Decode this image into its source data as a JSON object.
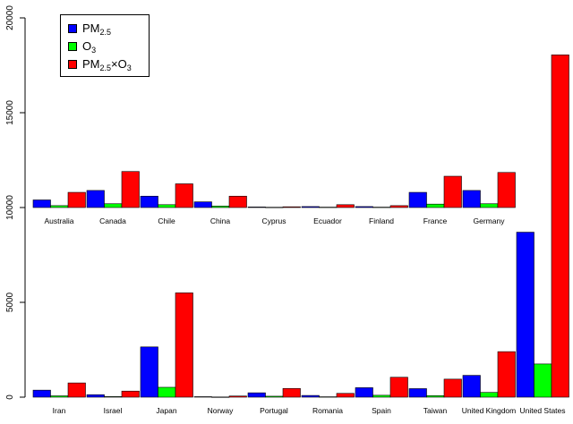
{
  "chart_data": {
    "type": "bar",
    "y_axis": {
      "range": [
        0,
        20000
      ],
      "ticks": [
        0,
        5000,
        10000,
        15000,
        20000
      ],
      "tick_labels": [
        "0",
        "5000",
        "10000",
        "15000",
        "20000"
      ]
    },
    "colors": {
      "pm25": "#0000ff",
      "o3": "#00ff00",
      "pm25xo3": "#ff0000"
    },
    "legend": {
      "placement": "top-left",
      "entries": [
        {
          "key": "pm25",
          "label": "PM2.5"
        },
        {
          "key": "o3",
          "label": "O3"
        },
        {
          "key": "pm25xo3",
          "label": "PM2.5×O3"
        }
      ]
    },
    "panels": [
      {
        "baseline": 10000,
        "categories": [
          "Australia",
          "Canada",
          "Chile",
          "China",
          "Cyprus",
          "Ecuador",
          "Finland",
          "France",
          "Germany"
        ],
        "series": [
          {
            "key": "pm25",
            "name": "PM2.5",
            "values": [
              400,
              900,
              600,
              300,
              30,
              50,
              50,
              800,
              900
            ]
          },
          {
            "key": "o3",
            "name": "O3",
            "values": [
              100,
              200,
              150,
              80,
              15,
              20,
              20,
              180,
              200
            ]
          },
          {
            "key": "pm25xo3",
            "name": "PM2.5×O3",
            "values": [
              800,
              1900,
              1250,
              600,
              40,
              150,
              100,
              1650,
              1850
            ]
          }
        ]
      },
      {
        "baseline": 0,
        "categories": [
          "Iran",
          "Israel",
          "Japan",
          "Norway",
          "Portugal",
          "Romania",
          "Spain",
          "Taiwan",
          "United Kingdom",
          "United States"
        ],
        "series": [
          {
            "key": "pm25",
            "name": "PM2.5",
            "values": [
              370,
              130,
              2650,
              25,
              230,
              90,
              500,
              450,
              1150,
              8700
            ]
          },
          {
            "key": "o3",
            "name": "O3",
            "values": [
              70,
              30,
              520,
              10,
              50,
              20,
              100,
              80,
              250,
              1750
            ]
          },
          {
            "key": "pm25xo3",
            "name": "PM2.5×O3",
            "values": [
              750,
              320,
              5500,
              60,
              460,
              200,
              1050,
              950,
              2400,
              18050
            ]
          }
        ]
      }
    ]
  }
}
